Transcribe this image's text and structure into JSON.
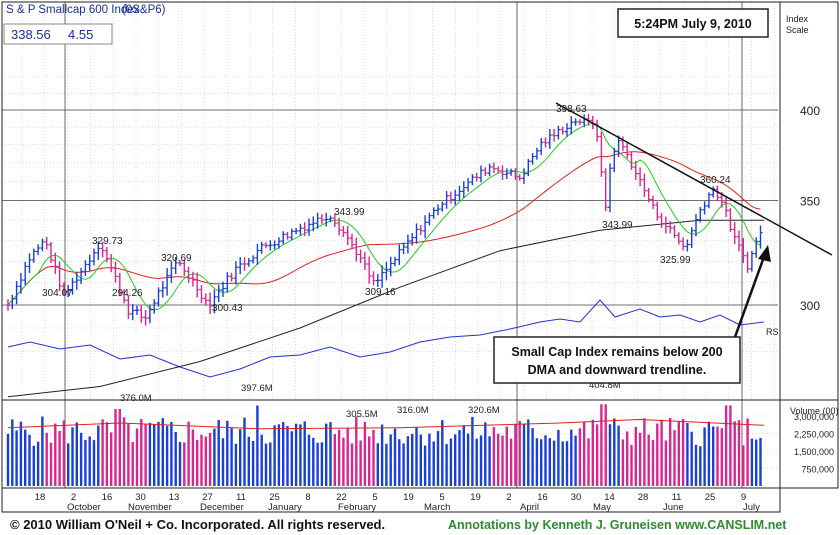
{
  "header": {
    "title": "S & P Smallcap 600 Index",
    "symbol": "(0S&P6)",
    "last_price": "338.56",
    "change": "4.55",
    "timestamp": "5:24PM July 9, 2010"
  },
  "colors": {
    "up_bar": "#1a3fd6",
    "down_bar": "#d6278f",
    "ma_short": "#22cc22",
    "ma_50": "#e02020",
    "ma_200": "#222222",
    "rs_line": "#2233cc",
    "grid": "#bbbbbb",
    "background": "#ffffff",
    "footer_annotation": "#2e8b2e"
  },
  "chart_data": [
    {
      "type": "ohlc",
      "y_axis_title": "Index Scale",
      "y_ticks": [
        300,
        350,
        400
      ],
      "ylim": [
        272,
        428
      ],
      "scale": "log",
      "price_labels": [
        "304.07",
        "329.73",
        "294.26",
        "320.69",
        "300.43",
        "343.99",
        "309.16",
        "398.63",
        "343.99",
        "360.24",
        "325.99"
      ],
      "lines": [
        "short-term MA",
        "50-day MA",
        "200-day MA",
        "RS line",
        "downward trendline"
      ],
      "rs_label": "RS",
      "annotation": "Small Cap Index remains below 200 DMA and downward trendline.",
      "x_labels": [
        "18",
        "2",
        "16",
        "30",
        "13",
        "27",
        "11",
        "25",
        "8",
        "22",
        "5",
        "19",
        "5",
        "19",
        "2",
        "16",
        "30",
        "14",
        "28",
        "11",
        "25",
        "9"
      ],
      "month_labels": [
        "October",
        "November",
        "December",
        "January",
        "February",
        "March",
        "April",
        "May",
        "June",
        "July"
      ]
    },
    {
      "type": "bar",
      "title": "Volume (00)",
      "y_ticks": [
        "3,000,000",
        "2,250,000",
        "1,500,000",
        "750,000"
      ],
      "ylim": [
        0,
        3600000
      ],
      "volume_labels": [
        "376.0M",
        "397.6M",
        "305.5M",
        "316.0M",
        "320.6M",
        "404.8M"
      ],
      "average_line": "50-day average volume"
    }
  ],
  "footer": {
    "copyright": "© 2010 William O'Neil + Co. Incorporated. All rights reserved.",
    "annotations": "Annotations by Kenneth J. Gruneisen www.CANSLIM.net"
  }
}
